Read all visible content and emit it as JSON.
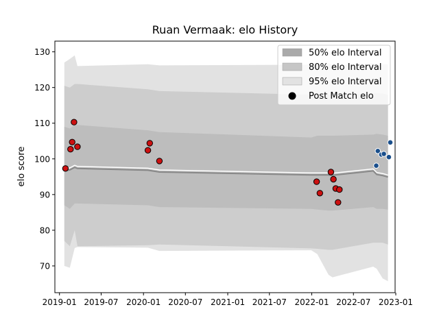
{
  "chart_data": {
    "type": "area",
    "title": "Ruan Vermaak: elo History",
    "xlabel": "",
    "ylabel": "elo score",
    "xlim": [
      "2018-12-12",
      "2022-12-29"
    ],
    "ylim": [
      62.5,
      133
    ],
    "x_ticks": [
      "2019-01",
      "2019-07",
      "2020-01",
      "2020-07",
      "2021-01",
      "2021-07",
      "2022-01",
      "2022-07",
      "2023-01"
    ],
    "y_ticks": [
      70,
      80,
      90,
      100,
      110,
      120,
      130
    ],
    "legend": {
      "position": "top-right",
      "entries": [
        {
          "label": "50% elo Interval",
          "color": "#aaaaaa"
        },
        {
          "label": "80% elo Interval",
          "color": "#c6c6c6"
        },
        {
          "label": "95% elo Interval",
          "color": "#e2e2e2"
        },
        {
          "label": "Post Match elo",
          "color": "#000000"
        }
      ]
    },
    "band_x": [
      "2019-01-22",
      "2019-02-15",
      "2019-03-08",
      "2019-03-20",
      "2020-01-20",
      "2020-03-10",
      "2021-12-30",
      "2022-01-25",
      "2022-03-15",
      "2022-04-01",
      "2022-09-25",
      "2022-10-10",
      "2022-11-05",
      "2022-11-28"
    ],
    "mean": [
      97.0,
      97.2,
      97.9,
      97.6,
      97.1,
      96.6,
      95.8,
      95.8,
      95.8,
      95.7,
      96.9,
      95.9,
      95.6,
      95.2
    ],
    "band_95": {
      "lower": [
        70.0,
        69.5,
        75.0,
        75.3,
        75.1,
        74.2,
        74.4,
        73.3,
        67.5,
        66.8,
        69.8,
        69.2,
        66.5,
        65.7
      ],
      "upper": [
        127.0,
        128.0,
        129.0,
        126.0,
        126.5,
        126.2,
        126.4,
        126.5,
        126.8,
        126.2,
        126.8,
        126.3,
        126.5,
        126.5
      ]
    },
    "band_80": {
      "lower": [
        77.0,
        75.5,
        80.0,
        75.5,
        75.8,
        76.0,
        74.9,
        74.8,
        74.5,
        74.5,
        76.5,
        76.5,
        76.5,
        76.0
      ]
    },
    "band_50": {
      "lower": [
        87.0,
        86.0,
        87.5,
        87.5,
        87.0,
        86.5,
        86.0,
        85.8,
        85.5,
        85.5,
        86.5,
        86.0,
        86.0,
        85.8
      ],
      "upper": [
        109.0,
        108.5,
        109.5,
        109.5,
        108.0,
        107.5,
        106.0,
        106.5,
        106.5,
        106.5,
        106.8,
        107.0,
        106.8,
        106.5
      ]
    },
    "series": [
      {
        "name": "Post Match elo",
        "points": [
          {
            "x": "2019-01-27",
            "y": 97.3
          },
          {
            "x": "2019-02-18",
            "y": 102.7
          },
          {
            "x": "2019-02-25",
            "y": 104.7
          },
          {
            "x": "2019-03-05",
            "y": 110.3
          },
          {
            "x": "2019-03-20",
            "y": 103.4
          },
          {
            "x": "2020-01-20",
            "y": 102.4
          },
          {
            "x": "2020-01-28",
            "y": 104.4
          },
          {
            "x": "2020-03-10",
            "y": 99.4
          },
          {
            "x": "2022-01-22",
            "y": 93.6
          },
          {
            "x": "2022-02-05",
            "y": 90.4
          },
          {
            "x": "2022-03-25",
            "y": 96.3
          },
          {
            "x": "2022-04-05",
            "y": 94.3
          },
          {
            "x": "2022-04-15",
            "y": 91.7
          },
          {
            "x": "2022-04-25",
            "y": 87.8
          },
          {
            "x": "2022-05-01",
            "y": 91.4
          }
        ],
        "color": "#cc1111"
      },
      {
        "name": "Post Match elo",
        "points": [
          {
            "x": "2022-10-08",
            "y": 98.1
          },
          {
            "x": "2022-10-15",
            "y": 102.2
          },
          {
            "x": "2022-10-30",
            "y": 101.2
          },
          {
            "x": "2022-11-10",
            "y": 101.4
          },
          {
            "x": "2022-12-02",
            "y": 100.5
          },
          {
            "x": "2022-12-08",
            "y": 104.6
          }
        ],
        "color": "#1a4f8c"
      }
    ],
    "grid": false
  }
}
